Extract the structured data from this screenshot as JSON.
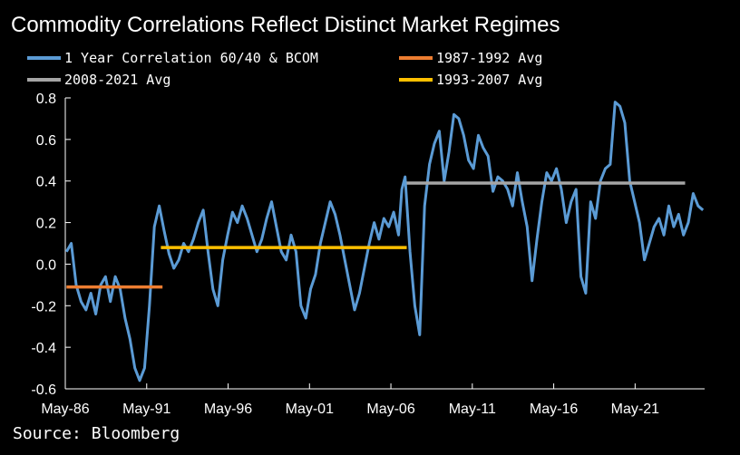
{
  "title": "Commodity Correlations Reflect Distinct Market Regimes",
  "source": "Source: Bloomberg",
  "chart_data": {
    "type": "line",
    "title": "Commodity Correlations Reflect Distinct Market Regimes",
    "xlabel": "",
    "ylabel": "",
    "ylim": [
      -0.6,
      0.8
    ],
    "xlim": [
      1986.33,
      2025.6
    ],
    "grid": false,
    "yticks": [
      "0.8",
      "0.6",
      "0.4",
      "0.2",
      "0.0",
      "-0.2",
      "-0.4",
      "-0.6"
    ],
    "ytick_values": [
      0.8,
      0.6,
      0.4,
      0.2,
      0.0,
      -0.2,
      -0.4,
      -0.6
    ],
    "xticks": [
      "May-86",
      "May-91",
      "May-96",
      "May-01",
      "May-06",
      "May-11",
      "May-16",
      "May-21"
    ],
    "xtick_values": [
      1986.33,
      1991.33,
      1996.33,
      2001.33,
      2006.33,
      2011.33,
      2016.33,
      2021.33
    ],
    "series": [
      {
        "name": "1 Year Correlation 60/40 & BCOM",
        "color": "#5b9bd5",
        "x": [
          1986.4,
          1986.7,
          1987.0,
          1987.3,
          1987.6,
          1987.9,
          1988.2,
          1988.5,
          1988.8,
          1989.1,
          1989.4,
          1989.7,
          1990.0,
          1990.3,
          1990.6,
          1990.9,
          1991.2,
          1991.5,
          1991.8,
          1992.1,
          1992.4,
          1992.7,
          1993.0,
          1993.3,
          1993.6,
          1993.9,
          1994.2,
          1994.5,
          1994.8,
          1995.1,
          1995.4,
          1995.7,
          1996.0,
          1996.3,
          1996.6,
          1996.9,
          1997.2,
          1997.5,
          1997.8,
          1998.1,
          1998.4,
          1998.7,
          1999.0,
          1999.3,
          1999.6,
          1999.9,
          2000.2,
          2000.5,
          2000.8,
          2001.1,
          2001.4,
          2001.7,
          2002.0,
          2002.3,
          2002.6,
          2002.9,
          2003.2,
          2003.5,
          2003.8,
          2004.1,
          2004.4,
          2004.7,
          2005.0,
          2005.3,
          2005.6,
          2005.9,
          2006.2,
          2006.5,
          2006.8,
          2007.0,
          2007.2,
          2007.5,
          2007.8,
          2008.1,
          2008.4,
          2008.7,
          2009.0,
          2009.3,
          2009.6,
          2009.9,
          2010.2,
          2010.5,
          2010.8,
          2011.1,
          2011.4,
          2011.7,
          2012.0,
          2012.3,
          2012.6,
          2012.9,
          2013.2,
          2013.5,
          2013.8,
          2014.1,
          2014.4,
          2014.7,
          2015.0,
          2015.3,
          2015.6,
          2015.9,
          2016.2,
          2016.5,
          2016.8,
          2017.1,
          2017.4,
          2017.7,
          2018.0,
          2018.3,
          2018.6,
          2018.9,
          2019.2,
          2019.5,
          2019.8,
          2020.1,
          2020.4,
          2020.7,
          2021.0,
          2021.3,
          2021.6,
          2021.9,
          2022.2,
          2022.5,
          2022.8,
          2023.1,
          2023.4,
          2023.7,
          2024.0,
          2024.3,
          2024.6,
          2024.9,
          2025.2,
          2025.5
        ],
        "values": [
          0.06,
          0.1,
          -0.1,
          -0.18,
          -0.22,
          -0.14,
          -0.24,
          -0.1,
          -0.06,
          -0.18,
          -0.06,
          -0.12,
          -0.26,
          -0.36,
          -0.5,
          -0.56,
          -0.5,
          -0.2,
          0.18,
          0.28,
          0.16,
          0.05,
          -0.02,
          0.02,
          0.1,
          0.06,
          0.12,
          0.2,
          0.26,
          0.06,
          -0.12,
          -0.2,
          0.02,
          0.14,
          0.25,
          0.2,
          0.28,
          0.22,
          0.14,
          0.06,
          0.12,
          0.22,
          0.3,
          0.18,
          0.06,
          0.02,
          0.14,
          0.06,
          -0.2,
          -0.26,
          -0.12,
          -0.05,
          0.1,
          0.2,
          0.3,
          0.24,
          0.14,
          0.02,
          -0.1,
          -0.22,
          -0.14,
          -0.02,
          0.1,
          0.2,
          0.12,
          0.22,
          0.18,
          0.25,
          0.14,
          0.36,
          0.42,
          0.06,
          -0.2,
          -0.34,
          0.28,
          0.48,
          0.58,
          0.64,
          0.4,
          0.54,
          0.72,
          0.7,
          0.62,
          0.5,
          0.46,
          0.62,
          0.56,
          0.52,
          0.35,
          0.42,
          0.4,
          0.36,
          0.28,
          0.44,
          0.3,
          0.18,
          -0.08,
          0.12,
          0.3,
          0.44,
          0.4,
          0.46,
          0.36,
          0.2,
          0.3,
          0.36,
          -0.06,
          -0.14,
          0.3,
          0.22,
          0.4,
          0.46,
          0.48,
          0.78,
          0.76,
          0.68,
          0.4,
          0.3,
          0.2,
          0.02,
          0.1,
          0.18,
          0.22,
          0.14,
          0.28,
          0.18,
          0.24,
          0.14,
          0.2,
          0.34,
          0.28,
          0.26
        ]
      },
      {
        "name": "1987-1992 Avg",
        "color": "#ed7d31",
        "x": [
          1986.4,
          1992.3
        ],
        "values": [
          -0.11,
          -0.11
        ]
      },
      {
        "name": "2008-2021 Avg",
        "color": "#a5a5a5",
        "x": [
          2007.3,
          2024.4
        ],
        "values": [
          0.39,
          0.39
        ]
      },
      {
        "name": "1993-2007 Avg",
        "color": "#ffc000",
        "x": [
          1992.2,
          2007.3
        ],
        "values": [
          0.08,
          0.08
        ]
      }
    ]
  }
}
